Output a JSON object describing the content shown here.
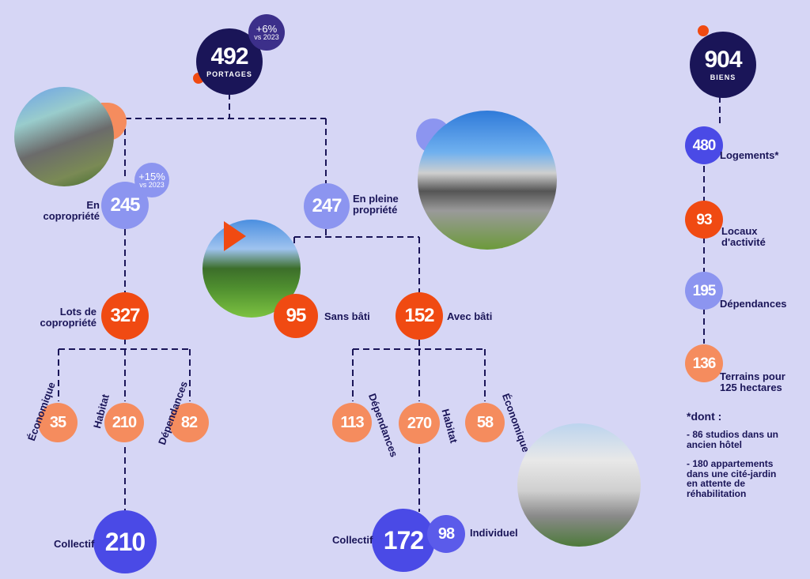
{
  "root": {
    "value": "492",
    "label": "PORTAGES",
    "growth_pct": "+6%",
    "growth_ref": "vs 2023"
  },
  "copro": {
    "value": "245",
    "label": "En copropriété",
    "growth_pct": "+15%",
    "growth_ref": "vs 2023"
  },
  "pleine": {
    "value": "247",
    "label": "En pleine propriété"
  },
  "lots": {
    "value": "327",
    "label": "Lots de copropriété"
  },
  "sans_bati": {
    "value": "95",
    "label": "Sans bâti"
  },
  "avec_bati": {
    "value": "152",
    "label": "Avec bâti"
  },
  "lots_children": [
    {
      "value": "35",
      "label": "Économique"
    },
    {
      "value": "210",
      "label": "Habitat"
    },
    {
      "value": "82",
      "label": "Dépendances"
    }
  ],
  "bati_children": [
    {
      "value": "113",
      "label": "Dépendances"
    },
    {
      "value": "270",
      "label": "Habitat"
    },
    {
      "value": "58",
      "label": "Économique"
    }
  ],
  "collectif_left": {
    "value": "210",
    "label": "Collectif"
  },
  "collectif_right": {
    "value": "172",
    "label": "Collectif"
  },
  "individuel": {
    "value": "98",
    "label": "Individuel"
  },
  "biens": {
    "total": "904",
    "label": "BIENS",
    "items": [
      {
        "value": "480",
        "label": "Logements*"
      },
      {
        "value": "93",
        "label": "Locaux d'activité"
      },
      {
        "value": "195",
        "label": "Dépendances"
      },
      {
        "value": "136",
        "label": "Terrains pour 125 hectares"
      }
    ]
  },
  "footnote": {
    "title": "*dont :",
    "items": [
      "- 86 studios dans un ancien hôtel",
      "- 180 appartements dans une cité-jardin en attente de réhabilitation"
    ]
  },
  "colors": {
    "navy": "#1a1558",
    "blue": "#4a4ae6",
    "lavender": "#8c95f0",
    "red": "#f04a12",
    "salmon": "#f58c5e",
    "background": "#d6d6f5"
  }
}
